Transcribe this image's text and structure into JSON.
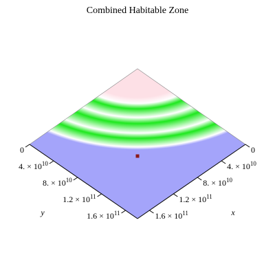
{
  "chart_data": {
    "type": "heatmap",
    "title": "Combined Habitable Zone",
    "xlabel": "x",
    "ylabel": "y",
    "x_ticks": [
      {
        "value": 0,
        "label": "0"
      },
      {
        "value": 40000000000.0,
        "label": "4. × 10",
        "exp": "10"
      },
      {
        "value": 80000000000.0,
        "label": "8. × 10",
        "exp": "10"
      },
      {
        "value": 120000000000.0,
        "label": "1.2 × 10",
        "exp": "11"
      },
      {
        "value": 160000000000.0,
        "label": "1.6 × 10",
        "exp": "11"
      }
    ],
    "y_ticks": [
      {
        "value": 0,
        "label": "0"
      },
      {
        "value": 40000000000.0,
        "label": "4. × 10",
        "exp": "10"
      },
      {
        "value": 80000000000.0,
        "label": "8. × 10",
        "exp": "10"
      },
      {
        "value": 120000000000.0,
        "label": "1.2 × 10",
        "exp": "11"
      },
      {
        "value": 160000000000.0,
        "label": "1.6 × 10",
        "exp": "11"
      }
    ],
    "xlim": [
      0,
      180000000000.0
    ],
    "ylim": [
      0,
      180000000000.0
    ],
    "colors": {
      "hot": "#fde0e6",
      "habitable": "#1ee81e",
      "cold": "#a4a4fa",
      "white": "#ffffff"
    },
    "marker": {
      "x": 90000000000.0,
      "y": 90000000000.0,
      "color": "#8b1a1a"
    }
  }
}
